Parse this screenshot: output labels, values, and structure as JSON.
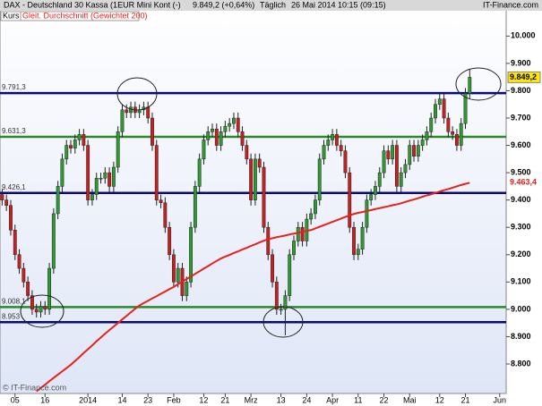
{
  "chart_data": {
    "type": "candlestick",
    "title": "DAX - Deutschland 30 Kassa (1EUR Mini Kont (-)",
    "quote": "9.849,2 (+0,64%)",
    "period": "Täglich",
    "timestamp": "26 Mai 2014 10:15 (09:15)",
    "brand": "IT-Finance.com",
    "watermark": "© IT-Finance.com",
    "categories": [
      null,
      null,
      null,
      "05",
      null,
      null,
      null,
      null,
      null,
      null,
      "16",
      null,
      null,
      null,
      null,
      null,
      null,
      null,
      null,
      null,
      "2014",
      null,
      null,
      null,
      null,
      null,
      null,
      null,
      "14",
      null,
      null,
      null,
      null,
      null,
      "23",
      null,
      null,
      null,
      null,
      null,
      "Feb",
      null,
      null,
      null,
      null,
      null,
      null,
      "12",
      null,
      null,
      null,
      null,
      "21",
      null,
      null,
      null,
      null,
      null,
      "Mrz",
      null,
      null,
      null,
      null,
      null,
      null,
      "13",
      null,
      null,
      null,
      null,
      null,
      "24",
      null,
      null,
      null,
      null,
      null,
      "Apr",
      null,
      null,
      null,
      null,
      null,
      "11",
      null,
      null,
      null,
      null,
      null,
      "22",
      null,
      null,
      null,
      null,
      null,
      "Mai",
      null,
      null,
      null,
      null,
      null,
      null,
      "12",
      null,
      null,
      null,
      null,
      null,
      "21",
      null,
      null,
      null,
      null,
      null,
      null,
      null,
      "Jun",
      null
    ],
    "series": [
      {
        "name": "Kurs",
        "up_color": "#2f9a2f",
        "down_color": "#c8201e",
        "last_label": "9.849,2",
        "open": [
          9420,
          9400,
          9380,
          9290,
          9200,
          9150,
          9100,
          9050,
          9000,
          8990,
          9010,
          9000,
          9150,
          9350,
          9450,
          9550,
          9600,
          9590,
          9620,
          9640,
          9600,
          9400,
          9420,
          9480,
          9480,
          9500,
          9450,
          9520,
          9650,
          9730,
          9720,
          9740,
          9720,
          9730,
          9740,
          9700,
          9600,
          9400,
          9390,
          9300,
          9200,
          9100,
          9150,
          9050,
          9100,
          9300,
          9450,
          9550,
          9620,
          9650,
          9660,
          9600,
          9650,
          9670,
          9680,
          9700,
          9650,
          9600,
          9550,
          9400,
          9550,
          9520,
          9300,
          9200,
          9100,
          9000,
          9000,
          9050,
          9200,
          9250,
          9300,
          9250,
          9330,
          9350,
          9400,
          9550,
          9600,
          9620,
          9640,
          9600,
          9580,
          9500,
          9300,
          9200,
          9220,
          9300,
          9400,
          9420,
          9450,
          9500,
          9580,
          9550,
          9600,
          9450,
          9500,
          9530,
          9600,
          9560,
          9600,
          9620,
          9650,
          9700,
          9750,
          9770,
          9700,
          9650,
          9640,
          9600,
          9680,
          9790,
          null,
          null,
          null,
          null,
          null,
          null,
          null,
          null
        ],
        "high": [
          9440,
          9420,
          9400,
          9310,
          9220,
          9170,
          9120,
          9070,
          9020,
          9030,
          9030,
          9170,
          9370,
          9470,
          9570,
          9620,
          9620,
          9640,
          9660,
          9660,
          9620,
          9440,
          9500,
          9500,
          9520,
          9520,
          9540,
          9670,
          9750,
          9750,
          9760,
          9760,
          9750,
          9760,
          9760,
          9720,
          9620,
          9420,
          9410,
          9320,
          9220,
          9170,
          9170,
          9120,
          9320,
          9470,
          9570,
          9640,
          9670,
          9680,
          9680,
          9670,
          9690,
          9700,
          9720,
          9720,
          9670,
          9620,
          9570,
          9570,
          9570,
          9540,
          9320,
          9220,
          9120,
          9020,
          9070,
          9220,
          9270,
          9320,
          9320,
          9350,
          9370,
          9420,
          9570,
          9620,
          9640,
          9660,
          9660,
          9620,
          9600,
          9520,
          9320,
          9240,
          9320,
          9420,
          9440,
          9470,
          9520,
          9600,
          9600,
          9620,
          9620,
          9520,
          9550,
          9620,
          9620,
          9620,
          9640,
          9670,
          9720,
          9770,
          9790,
          9790,
          9720,
          9670,
          9660,
          9700,
          9810,
          9880,
          null,
          null,
          null,
          null,
          null,
          null,
          null,
          null
        ],
        "low": [
          9380,
          9360,
          9270,
          9180,
          9130,
          9080,
          9030,
          8980,
          8970,
          8970,
          8980,
          8980,
          9130,
          9330,
          9430,
          9530,
          9570,
          9570,
          9600,
          9580,
          9380,
          9380,
          9400,
          9460,
          9460,
          9430,
          9430,
          9500,
          9630,
          9700,
          9700,
          9700,
          9700,
          9710,
          9680,
          9580,
          9380,
          9370,
          9280,
          9180,
          9080,
          9080,
          9030,
          9030,
          9080,
          9280,
          9430,
          9530,
          9600,
          9630,
          9580,
          9580,
          9630,
          9650,
          9660,
          9630,
          9580,
          9530,
          9380,
          9380,
          9500,
          9280,
          9180,
          9080,
          8980,
          8980,
          8905,
          9030,
          9180,
          9230,
          9230,
          9230,
          9310,
          9330,
          9380,
          9530,
          9580,
          9600,
          9580,
          9560,
          9480,
          9280,
          9180,
          9180,
          9200,
          9280,
          9380,
          9400,
          9430,
          9480,
          9530,
          9530,
          9430,
          9430,
          9480,
          9510,
          9540,
          9540,
          9580,
          9600,
          9630,
          9680,
          9730,
          9680,
          9630,
          9620,
          9580,
          9580,
          9660,
          9770,
          null,
          null,
          null,
          null,
          null,
          null,
          null,
          null
        ],
        "close": [
          9400,
          9380,
          9290,
          9200,
          9150,
          9100,
          9050,
          9000,
          8990,
          9010,
          9000,
          9150,
          9350,
          9450,
          9550,
          9600,
          9590,
          9620,
          9640,
          9600,
          9400,
          9420,
          9480,
          9480,
          9500,
          9450,
          9520,
          9650,
          9730,
          9720,
          9740,
          9720,
          9730,
          9740,
          9700,
          9600,
          9400,
          9390,
          9300,
          9200,
          9100,
          9150,
          9050,
          9100,
          9300,
          9450,
          9550,
          9620,
          9650,
          9660,
          9600,
          9650,
          9670,
          9680,
          9700,
          9650,
          9600,
          9550,
          9400,
          9550,
          9520,
          9300,
          9200,
          9100,
          9000,
          9000,
          9050,
          9200,
          9250,
          9300,
          9250,
          9330,
          9350,
          9400,
          9550,
          9600,
          9620,
          9640,
          9600,
          9580,
          9500,
          9300,
          9200,
          9220,
          9300,
          9400,
          9420,
          9450,
          9500,
          9580,
          9550,
          9600,
          9450,
          9500,
          9530,
          9600,
          9560,
          9600,
          9620,
          9650,
          9700,
          9750,
          9770,
          9700,
          9650,
          9640,
          9600,
          9680,
          9790,
          9849.2,
          null,
          null,
          null,
          null,
          null,
          null,
          null,
          null
        ]
      },
      {
        "name": "Gleit. Durchschnitt (Gewichtet 200)",
        "type": "line",
        "color": "#e8201a",
        "last_label": "9.463,4",
        "values": [
          null,
          null,
          null,
          null,
          null,
          null,
          null,
          null,
          8700,
          8712,
          8724,
          8737,
          8749,
          8761,
          8773,
          8785,
          8797,
          8811,
          8825,
          8840,
          8854,
          8868,
          8883,
          8897,
          8911,
          8924,
          8937,
          8950,
          8963,
          8976,
          8989,
          9002,
          9014,
          9023,
          9031,
          9040,
          9048,
          9057,
          9065,
          9074,
          9082,
          9092,
          9101,
          9111,
          9120,
          9130,
          9139,
          9149,
          9158,
          9168,
          9177,
          9186,
          9193,
          9199,
          9206,
          9212,
          9219,
          9225,
          9232,
          9238,
          9245,
          9251,
          9257,
          9260,
          9264,
          9267,
          9270,
          9274,
          9277,
          9280,
          9284,
          9287,
          9290,
          9296,
          9302,
          9308,
          9314,
          9320,
          9326,
          9332,
          9338,
          9344,
          9349,
          9353,
          9356,
          9360,
          9363,
          9367,
          9370,
          9374,
          9377,
          9381,
          9384,
          9388,
          9393,
          9398,
          9402,
          9407,
          9412,
          9417,
          9421,
          9426,
          9431,
          9436,
          9440,
          9445,
          9450,
          9455,
          9459,
          9463.4,
          null,
          null,
          null,
          null,
          null,
          null,
          null,
          null
        ]
      }
    ],
    "hlines": [
      {
        "value": 9791.3,
        "label": "9.791,3",
        "color": "#0a0a80"
      },
      {
        "value": 9631.3,
        "label": "9.631,3",
        "color": "#2a8a2a"
      },
      {
        "value": 9426.1,
        "label": "9.426,1",
        "color": "#0a0a80"
      },
      {
        "value": 9008.1,
        "label": "9.008,1",
        "color": "#2a8a2a"
      },
      {
        "value": 8953,
        "label": "8.953",
        "color": "#0a0a80"
      }
    ],
    "ylim": [
      8692,
      10132
    ],
    "yticks": [
      {
        "value": 8800,
        "label": "8.800"
      },
      {
        "value": 8900,
        "label": "8.900"
      },
      {
        "value": 9000,
        "label": "9.000"
      },
      {
        "value": 9100,
        "label": "9.100"
      },
      {
        "value": 9200,
        "label": "9.200"
      },
      {
        "value": 9300,
        "label": "9.300"
      },
      {
        "value": 9400,
        "label": "9.400"
      },
      {
        "value": 9500,
        "label": "9.500"
      },
      {
        "value": 9600,
        "label": "9.600"
      },
      {
        "value": 9700,
        "label": "9.700"
      },
      {
        "value": 9800,
        "label": "9.800"
      },
      {
        "value": 9900,
        "label": "9.900"
      },
      {
        "value": 10000,
        "label": "10.000"
      }
    ]
  }
}
